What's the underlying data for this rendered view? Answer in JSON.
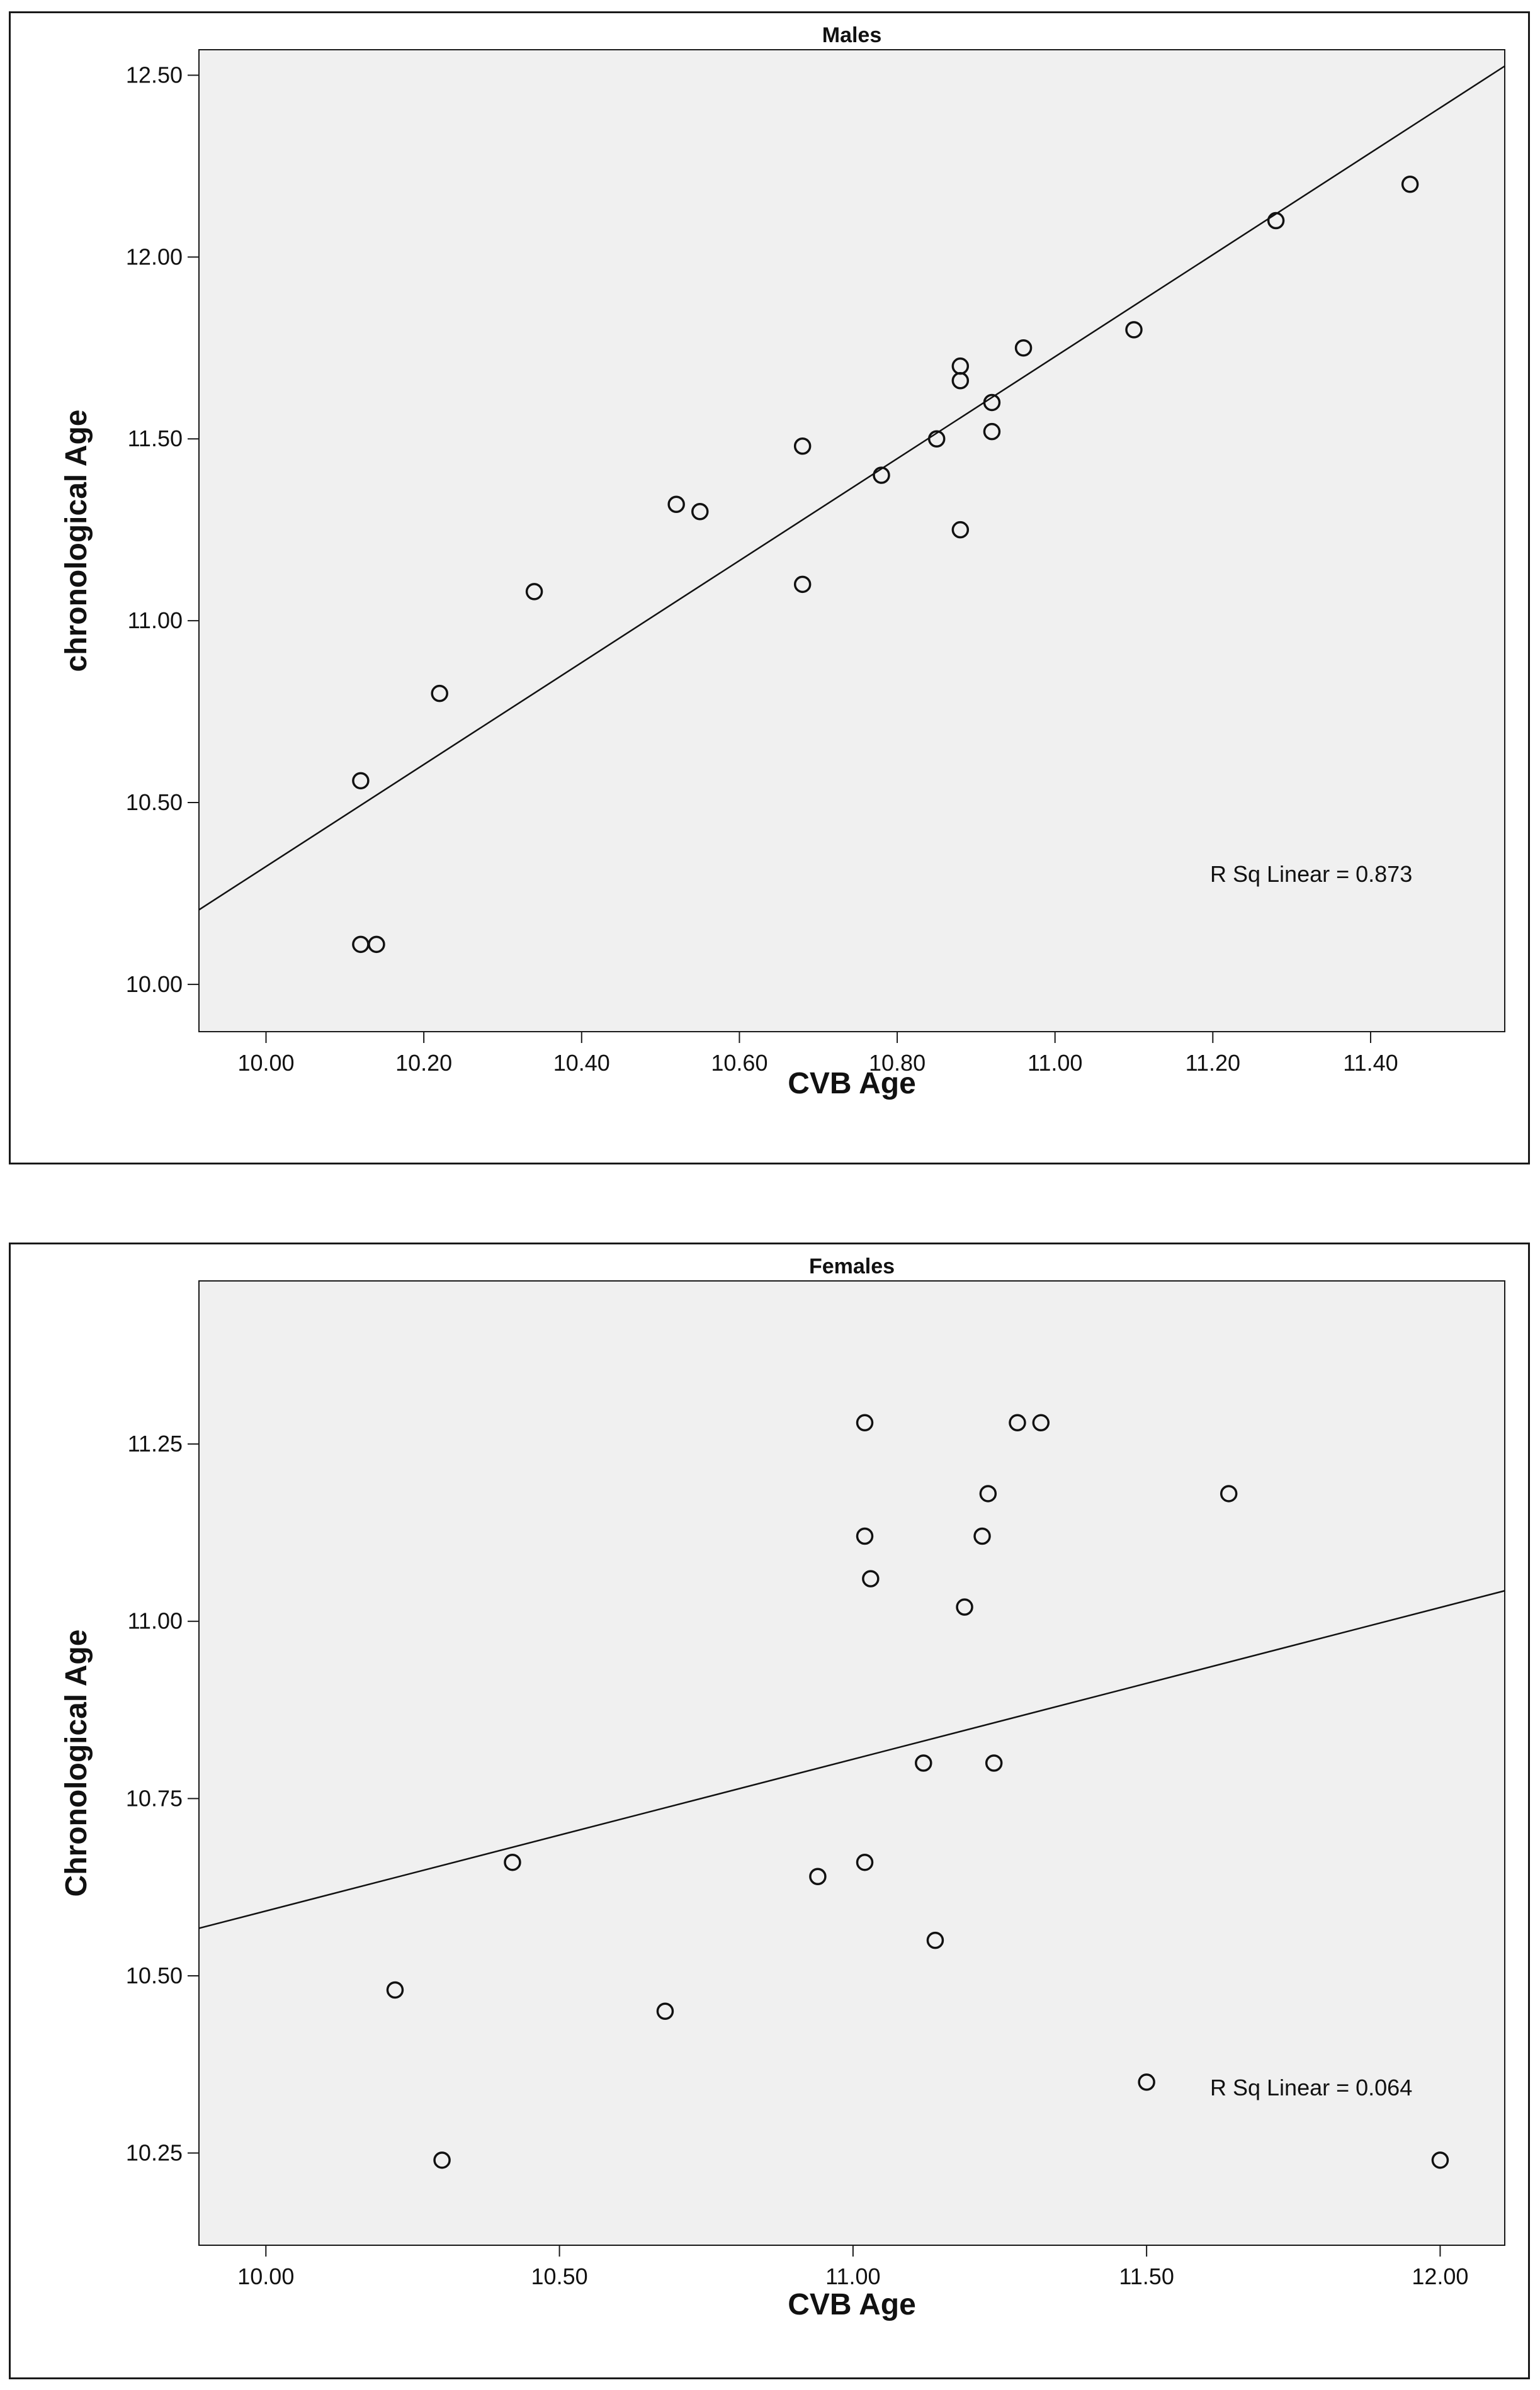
{
  "chart_data": [
    {
      "type": "scatter",
      "title": "Males",
      "xlabel": "CVB Age",
      "ylabel": "chronological Age",
      "xlim": [
        9.915,
        11.57
      ],
      "ylim": [
        9.87,
        12.57
      ],
      "xticks": [
        10.0,
        10.2,
        10.4,
        10.6,
        10.8,
        11.0,
        11.2,
        11.4
      ],
      "xtick_labels": [
        "10.00",
        "10.20",
        "10.40",
        "10.60",
        "10.80",
        "11.00",
        "11.20",
        "11.40"
      ],
      "yticks": [
        10.0,
        10.5,
        11.0,
        11.5,
        12.0,
        12.5
      ],
      "ytick_labels": [
        "10.00",
        "10.50",
        "11.00",
        "11.50",
        "12.00",
        "12.50"
      ],
      "grid": false,
      "points": [
        {
          "x": 10.12,
          "y": 10.11
        },
        {
          "x": 10.14,
          "y": 10.11
        },
        {
          "x": 10.12,
          "y": 10.56
        },
        {
          "x": 10.22,
          "y": 10.8
        },
        {
          "x": 10.34,
          "y": 11.08
        },
        {
          "x": 10.52,
          "y": 11.32
        },
        {
          "x": 10.55,
          "y": 11.3
        },
        {
          "x": 10.68,
          "y": 11.48
        },
        {
          "x": 10.68,
          "y": 11.1
        },
        {
          "x": 10.78,
          "y": 11.4
        },
        {
          "x": 10.85,
          "y": 11.5
        },
        {
          "x": 10.88,
          "y": 11.7
        },
        {
          "x": 10.88,
          "y": 11.66
        },
        {
          "x": 10.88,
          "y": 11.25
        },
        {
          "x": 10.92,
          "y": 11.6
        },
        {
          "x": 10.92,
          "y": 11.52
        },
        {
          "x": 10.96,
          "y": 11.75
        },
        {
          "x": 11.1,
          "y": 11.8
        },
        {
          "x": 11.28,
          "y": 12.1
        },
        {
          "x": 11.45,
          "y": 12.2
        }
      ],
      "fit_line": {
        "x": [
          9.915,
          11.57
        ],
        "y": [
          10.205,
          12.525
        ]
      },
      "annotation": "R Sq Linear = 0.873",
      "colors": {
        "plot_bg": "#f0f0f0",
        "marker_stroke": "#111111",
        "line": "#111111"
      }
    },
    {
      "type": "scatter",
      "title": "Females",
      "xlabel": "CVB Age",
      "ylabel": "Chronological Age",
      "xlim": [
        9.886,
        12.11
      ],
      "ylim": [
        10.12,
        11.48
      ],
      "xticks": [
        10.0,
        10.5,
        11.0,
        11.5,
        12.0
      ],
      "xtick_labels": [
        "10.00",
        "10.50",
        "11.00",
        "11.50",
        "12.00"
      ],
      "yticks": [
        10.25,
        10.5,
        10.75,
        11.0,
        11.25
      ],
      "ytick_labels": [
        "10.25",
        "10.50",
        "10.75",
        "11.00",
        "11.25"
      ],
      "grid": false,
      "points": [
        {
          "x": 10.22,
          "y": 10.48
        },
        {
          "x": 10.3,
          "y": 10.24
        },
        {
          "x": 10.42,
          "y": 10.66
        },
        {
          "x": 10.68,
          "y": 10.45
        },
        {
          "x": 10.94,
          "y": 10.64
        },
        {
          "x": 11.02,
          "y": 11.28
        },
        {
          "x": 11.02,
          "y": 11.12
        },
        {
          "x": 11.03,
          "y": 11.06
        },
        {
          "x": 11.02,
          "y": 10.66
        },
        {
          "x": 11.12,
          "y": 10.8
        },
        {
          "x": 11.14,
          "y": 10.55
        },
        {
          "x": 11.19,
          "y": 11.02
        },
        {
          "x": 11.22,
          "y": 11.12
        },
        {
          "x": 11.23,
          "y": 11.18
        },
        {
          "x": 11.24,
          "y": 10.8
        },
        {
          "x": 11.28,
          "y": 11.28
        },
        {
          "x": 11.32,
          "y": 11.28
        },
        {
          "x": 11.5,
          "y": 10.35
        },
        {
          "x": 11.64,
          "y": 11.18
        },
        {
          "x": 12.0,
          "y": 10.24
        }
      ],
      "fit_line": {
        "x": [
          9.886,
          12.11
        ],
        "y": [
          10.567,
          11.043
        ]
      },
      "annotation": "R Sq Linear = 0.064",
      "colors": {
        "plot_bg": "#f0f0f0",
        "marker_stroke": "#111111",
        "line": "#111111"
      }
    }
  ]
}
